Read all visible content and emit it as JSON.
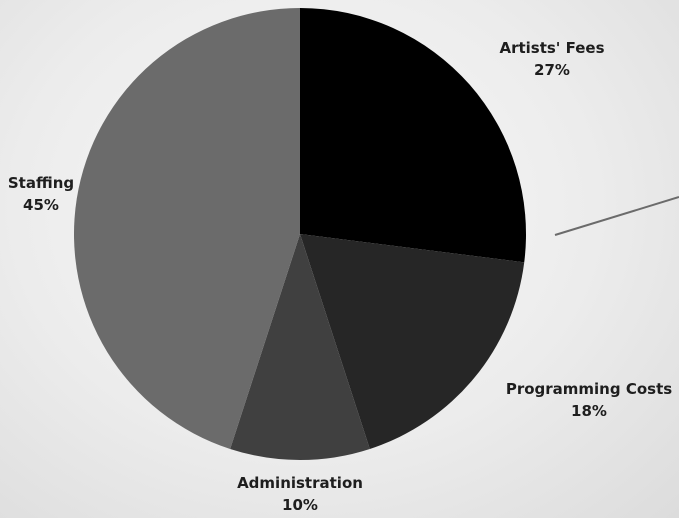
{
  "chart_data": {
    "type": "pie",
    "slices": [
      {
        "label": "Artists' Fees",
        "value": 27,
        "value_label": "27%",
        "color": "#000000"
      },
      {
        "label": "Programming Costs",
        "value": 18,
        "value_label": "18%",
        "color": "#262626"
      },
      {
        "label": "Administration",
        "value": 10,
        "value_label": "10%",
        "color": "#404040"
      },
      {
        "label": "Staffing",
        "value": 45,
        "value_label": "45%",
        "color": "#6b6b6b"
      }
    ],
    "start": "12 o'clock, clockwise",
    "legend": "none"
  }
}
